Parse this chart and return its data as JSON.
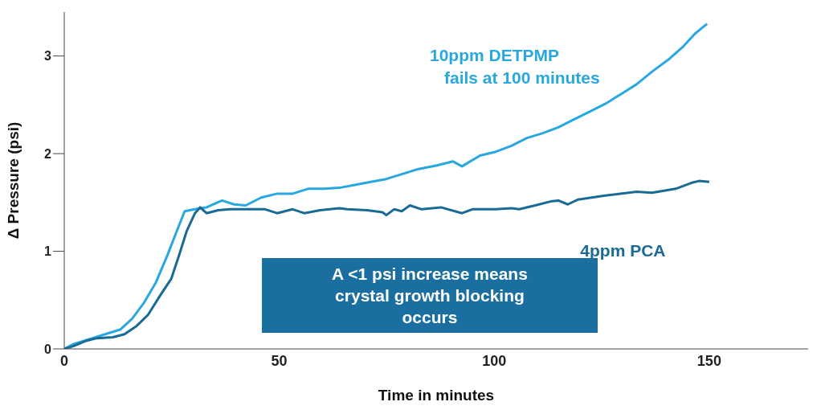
{
  "chart_data": {
    "type": "line",
    "xlabel": "Time in minutes",
    "ylabel": "Δ Pressure (psi)",
    "xlim": [
      0,
      173
    ],
    "ylim": [
      0,
      3.45
    ],
    "xticks": [
      0,
      50,
      100,
      150
    ],
    "yticks": [
      0,
      1,
      2,
      3
    ],
    "grid": false,
    "legend": false,
    "marker": "none",
    "line_style": "solid",
    "annotations": [
      "fails at 100 minutes",
      "A <1 psi increase means crystal growth blocking occurs"
    ],
    "series": [
      {
        "name": "10ppm DETPMP",
        "color": "#29a8e0",
        "x": [
          0,
          2.2,
          5.8,
          9.5,
          13.1,
          15.8,
          18.5,
          21.3,
          24,
          26.2,
          28,
          30.4,
          33.1,
          36.7,
          39.5,
          42.2,
          45.8,
          49.5,
          53.1,
          56.7,
          60.4,
          64,
          67.6,
          71.3,
          74.9,
          78.5,
          82.2,
          86.7,
          90.4,
          92.5,
          96.7,
          100.4,
          104,
          107.6,
          111.3,
          114.9,
          118.5,
          122.2,
          125.8,
          129.5,
          133.1,
          136.7,
          140.4,
          144,
          146.7,
          149.5
        ],
        "values": [
          0,
          0.05,
          0.1,
          0.15,
          0.2,
          0.31,
          0.47,
          0.68,
          0.96,
          1.21,
          1.41,
          1.43,
          1.45,
          1.52,
          1.48,
          1.47,
          1.55,
          1.59,
          1.59,
          1.64,
          1.64,
          1.65,
          1.68,
          1.71,
          1.74,
          1.79,
          1.84,
          1.88,
          1.92,
          1.87,
          1.98,
          2.02,
          2.08,
          2.16,
          2.21,
          2.27,
          2.35,
          2.43,
          2.51,
          2.61,
          2.71,
          2.84,
          2.96,
          3.1,
          3.23,
          3.33
        ]
      },
      {
        "name": "4ppm PCA",
        "color": "#1a6a96",
        "x": [
          0,
          2.2,
          4.9,
          7.6,
          11.3,
          14,
          16.7,
          19.5,
          22.2,
          24.9,
          26.7,
          28.5,
          30.4,
          31.6,
          33.1,
          35.8,
          38.5,
          42.2,
          46.7,
          49.5,
          53.1,
          55.8,
          59.5,
          64,
          65.8,
          70.4,
          74,
          74.9,
          76.7,
          78.5,
          80.4,
          83.1,
          87.6,
          92.5,
          94.9,
          100.4,
          104,
          105.8,
          109.5,
          113.1,
          114.9,
          117.1,
          119.5,
          125.8,
          133.1,
          136.7,
          142.2,
          145.8,
          147.6,
          150
        ],
        "values": [
          0,
          0.03,
          0.08,
          0.11,
          0.12,
          0.15,
          0.23,
          0.35,
          0.54,
          0.72,
          0.96,
          1.21,
          1.39,
          1.45,
          1.39,
          1.42,
          1.43,
          1.43,
          1.43,
          1.39,
          1.43,
          1.39,
          1.42,
          1.44,
          1.43,
          1.42,
          1.4,
          1.37,
          1.43,
          1.41,
          1.47,
          1.43,
          1.45,
          1.39,
          1.43,
          1.43,
          1.44,
          1.43,
          1.47,
          1.51,
          1.52,
          1.48,
          1.53,
          1.57,
          1.61,
          1.6,
          1.64,
          1.7,
          1.72,
          1.71
        ]
      }
    ]
  }
}
